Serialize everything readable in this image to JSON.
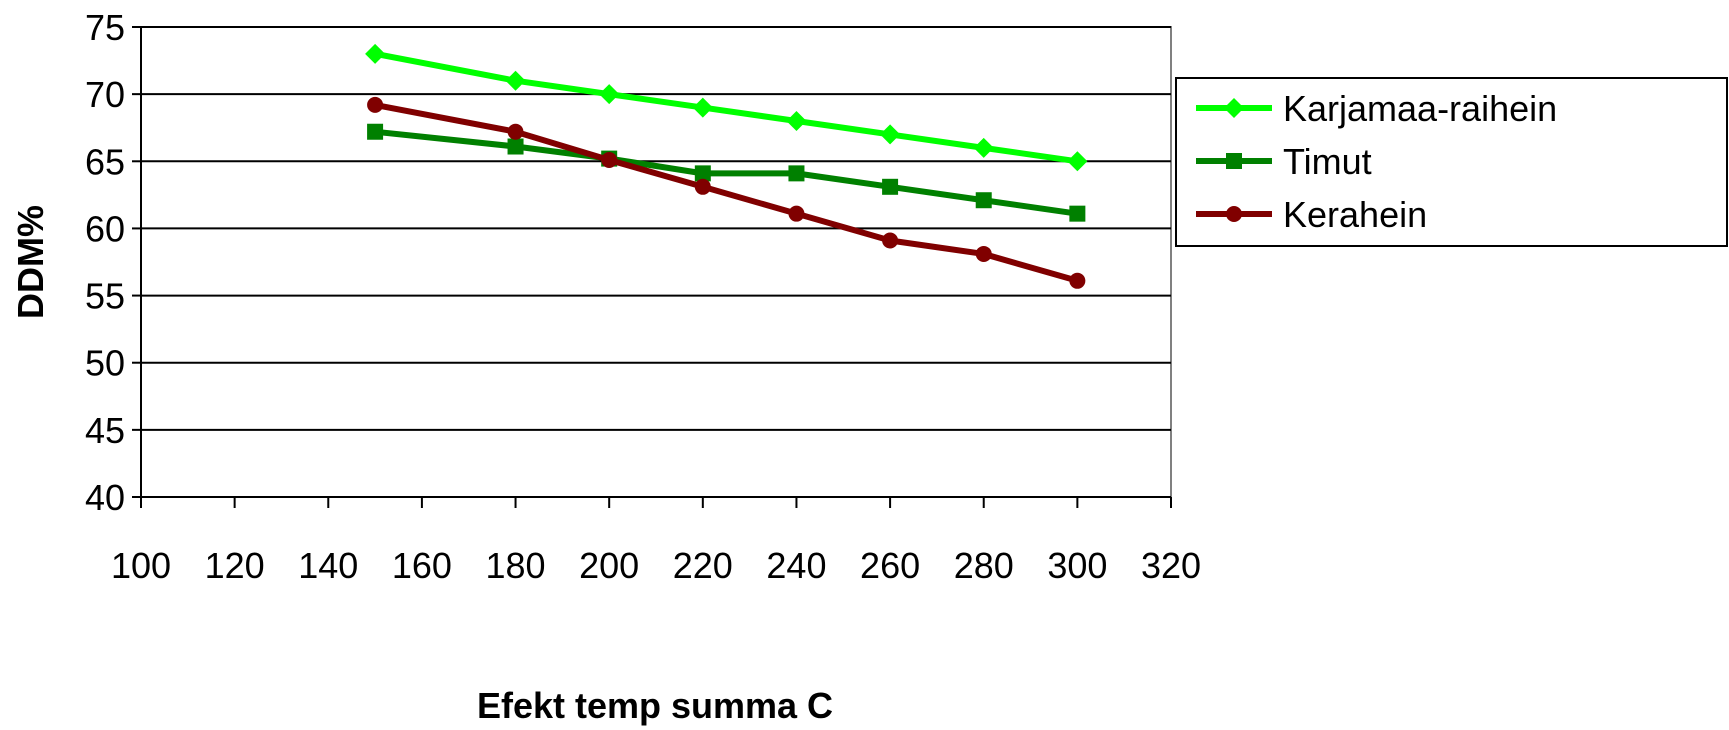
{
  "chart_data": {
    "type": "line",
    "title": "",
    "xlabel": "Efekt temp summa C",
    "ylabel": "DDM%",
    "xlim": [
      100,
      320
    ],
    "ylim": [
      40,
      75
    ],
    "xticks": [
      100,
      120,
      140,
      160,
      180,
      200,
      220,
      240,
      260,
      280,
      300,
      320
    ],
    "yticks": [
      40,
      45,
      50,
      55,
      60,
      65,
      70,
      75
    ],
    "grid": "horizontal",
    "legend_position": "right",
    "series": [
      {
        "name": "Karjamaa-raihein",
        "color": "#00FF00",
        "marker": "diamond",
        "x": [
          150,
          180,
          200,
          220,
          240,
          260,
          280,
          300
        ],
        "y": [
          73,
          71,
          70,
          69,
          68,
          67,
          66,
          65
        ]
      },
      {
        "name": "Timut",
        "color": "#008000",
        "marker": "square",
        "x": [
          150,
          180,
          200,
          220,
          240,
          260,
          280,
          300
        ],
        "y": [
          67.2,
          66.1,
          65.2,
          64.1,
          64.1,
          63.1,
          62.1,
          61.1
        ]
      },
      {
        "name": "Kerahein",
        "color": "#800000",
        "marker": "circle",
        "x": [
          150,
          180,
          200,
          220,
          240,
          260,
          280,
          300
        ],
        "y": [
          69.2,
          67.2,
          65.1,
          63.1,
          61.1,
          59.1,
          58.1,
          56.1
        ]
      }
    ]
  }
}
